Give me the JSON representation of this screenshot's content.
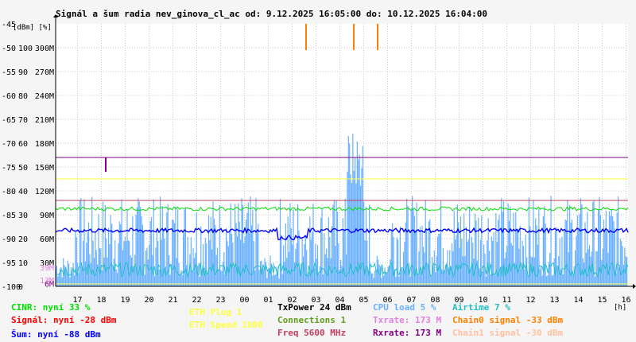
{
  "title": "Signál a šum radia nev_ginova_cl_ac od: 9.12.2025 16:05:00 do: 10.12.2025 16:04:00",
  "unit_label": "[dBm] [%]",
  "x_unit": "[h]",
  "legend": [
    {
      "key": "cinr",
      "text": "CINR: nyní 33 %",
      "color": "#00e000"
    },
    {
      "key": "eth_plug",
      "text": "ETH Plug 1",
      "color": "#ffff40"
    },
    {
      "key": "txpower",
      "text": "TxPower 24 dBm",
      "color": "#000000"
    },
    {
      "key": "cpu",
      "text": "CPU load 5 %",
      "color": "#6ab0ff"
    },
    {
      "key": "airtime",
      "text": "Airtime 7 %",
      "color": "#20c0c0"
    },
    {
      "key": "signal",
      "text": "Signál: nyní -28 dBm",
      "color": "#ff0000"
    },
    {
      "key": "eth_speed",
      "text": "ETH Speed 1000",
      "color": "#ffff40"
    },
    {
      "key": "connections",
      "text": "Connections 1",
      "color": "#60a020"
    },
    {
      "key": "txrate",
      "text": "Txrate: 173 M",
      "color": "#e080e0"
    },
    {
      "key": "chain0",
      "text": "Chain0 signal -33 dBm",
      "color": "#ff8000"
    },
    {
      "key": "sum",
      "text": "Šum: nyní -88 dBm",
      "color": "#0000ff"
    },
    {
      "key": "freq",
      "text": "Freq 5600 MHz",
      "color": "#c04060"
    },
    {
      "key": "rxrate",
      "text": "Rxrate: 173 M",
      "color": "#800080"
    },
    {
      "key": "chain1",
      "text": "Chain1 signal -30 dBm",
      "color": "#ffc0a0"
    }
  ],
  "chart_data": {
    "type": "line",
    "x_ticks": [
      "17",
      "18",
      "19",
      "20",
      "21",
      "22",
      "23",
      "00",
      "01",
      "02",
      "03",
      "04",
      "05",
      "06",
      "07",
      "08",
      "09",
      "10",
      "11",
      "12",
      "13",
      "14",
      "15",
      "16"
    ],
    "y_axis_dbm": [
      "-45",
      "-50",
      "-55",
      "-60",
      "-65",
      "-70",
      "-75",
      "-80",
      "-85",
      "-90",
      "-95",
      "-100"
    ],
    "y_axis_pct": [
      "100",
      "90",
      "80",
      "70",
      "60",
      "50",
      "40",
      "30",
      "20",
      "10",
      "0"
    ],
    "y_axis_rate": [
      "300M",
      "270M",
      "240M",
      "210M",
      "180M",
      "150M",
      "120M",
      "90M",
      "60M",
      "30M"
    ],
    "y_axis_rate_small": [
      "39M",
      "13M",
      "6M"
    ],
    "ylim_dbm": [
      -100,
      -45
    ],
    "series": [
      {
        "name": "Šum",
        "color": "#0000ff",
        "level_dbm": -88
      },
      {
        "name": "CINR",
        "color": "#00e000",
        "level_pct": 33
      },
      {
        "name": "CPU load",
        "color": "#6ab0ff",
        "level_pct": 5
      },
      {
        "name": "Airtime",
        "color": "#20c0c0",
        "level_pct": 7
      },
      {
        "name": "Rxrate",
        "color": "#800080",
        "level_rate_M": 173
      },
      {
        "name": "Txrate",
        "color": "#e080e0",
        "level_rate_M": 173
      },
      {
        "name": "Freq",
        "color": "#c04060",
        "level_rate_M": 120
      },
      {
        "name": "ETH Speed",
        "color": "#ffff40",
        "level_rate_M": 150
      },
      {
        "name": "Chain0 signal",
        "color": "#ff8000",
        "spikes_h": [
          10.5,
          12.5,
          13.5
        ]
      }
    ]
  },
  "colors": {
    "plot_bg": "#ffffff",
    "grid": "#c8c8c8",
    "axis": "#000000"
  }
}
